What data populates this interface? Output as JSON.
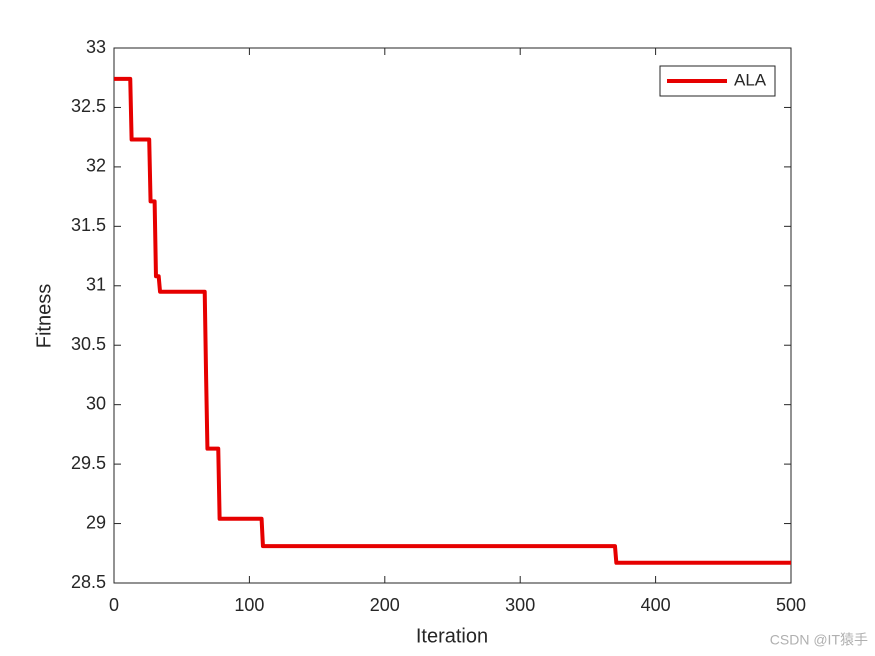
{
  "chart_data": {
    "type": "line",
    "xlabel": "Iteration",
    "ylabel": "Fitness",
    "x": [
      0,
      12,
      13,
      26,
      27,
      30,
      31,
      33,
      34,
      67,
      68,
      69,
      77,
      78,
      109,
      110,
      370,
      371,
      500
    ],
    "series": [
      {
        "name": "ALA",
        "color": "#e60000",
        "values": [
          32.74,
          32.74,
          32.23,
          32.23,
          31.71,
          31.71,
          31.08,
          31.08,
          30.95,
          30.95,
          30.25,
          29.63,
          29.63,
          29.04,
          29.04,
          28.81,
          28.81,
          28.67,
          28.67
        ]
      }
    ],
    "xlim": [
      0,
      500
    ],
    "xticks": [
      0,
      100,
      200,
      300,
      400,
      500
    ],
    "ylim": [
      28.5,
      33
    ],
    "yticks": [
      28.5,
      29,
      29.5,
      30,
      30.5,
      31,
      31.5,
      32,
      32.5,
      33
    ],
    "grid": false,
    "legend": "top-right",
    "watermark": "CSDN @IT猿手"
  }
}
